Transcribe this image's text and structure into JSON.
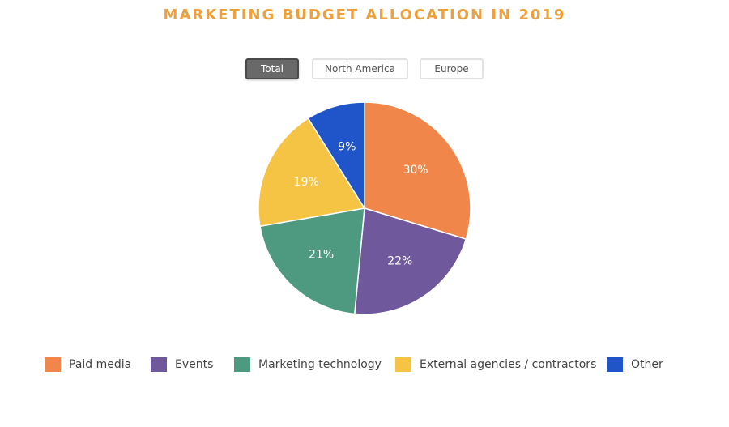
{
  "chart_data": {
    "type": "pie",
    "title": "MARKETING BUDGET ALLOCATION IN 2019",
    "tabs": [
      {
        "label": "Total",
        "active": true
      },
      {
        "label": "North America",
        "active": false
      },
      {
        "label": "Europe",
        "active": false
      }
    ],
    "slices": [
      {
        "name": "Paid media",
        "value": 30,
        "label": "30%",
        "color": "#f0864a"
      },
      {
        "name": "Events",
        "value": 22,
        "label": "22%",
        "color": "#6f589b"
      },
      {
        "name": "Marketing technology",
        "value": 21,
        "label": "21%",
        "color": "#4e9a80"
      },
      {
        "name": "External agencies / contractors",
        "value": 19,
        "label": "19%",
        "color": "#f6c445"
      },
      {
        "name": "Other",
        "value": 9,
        "label": "9%",
        "color": "#1f55c8"
      }
    ],
    "legend_position": "bottom"
  }
}
